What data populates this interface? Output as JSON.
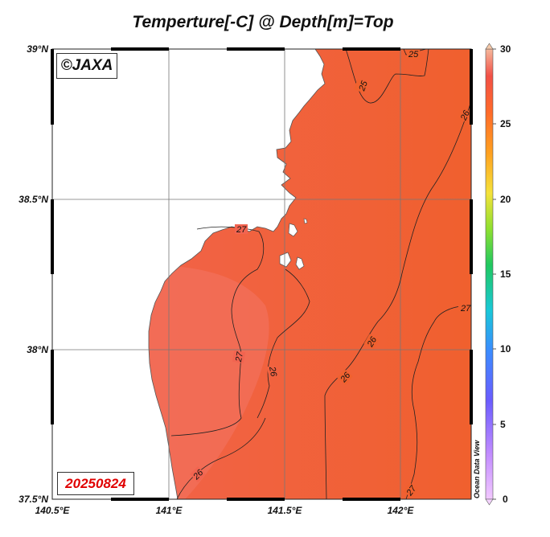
{
  "title": "Temperture[-C] @ Depth[m]=Top",
  "copyright": "©JAXA",
  "date": "20250824",
  "watermark": "Ocean Data View",
  "map": {
    "lat_labels": [
      "39°N",
      "38.5°N",
      "38°N",
      "37.5°N"
    ],
    "lon_labels": [
      "140.5°E",
      "141°E",
      "141.5°E",
      "142°E"
    ],
    "extent": {
      "lon": [
        140.5,
        142.3
      ],
      "lat": [
        37.5,
        39.0
      ]
    }
  },
  "colorbar": {
    "min": 0,
    "max": 30,
    "tick_labels": [
      "30",
      "25",
      "20",
      "15",
      "10",
      "5",
      "0"
    ],
    "colors": [
      "#f2c8ff",
      "#c28cff",
      "#6a5cff",
      "#3b8cff",
      "#19c8d8",
      "#20c860",
      "#8ee030",
      "#f5e23a",
      "#ffa020",
      "#ff6a2a",
      "#f25046",
      "#f5b89c"
    ]
  },
  "contours": [
    {
      "label": "25",
      "value": 25
    },
    {
      "label": "25",
      "value": 25
    },
    {
      "label": "26",
      "value": 26
    },
    {
      "label": "27",
      "value": 27
    },
    {
      "label": "27",
      "value": 27
    },
    {
      "label": "26",
      "value": 26
    },
    {
      "label": "26",
      "value": 26
    },
    {
      "label": "26",
      "value": 26
    },
    {
      "label": "27",
      "value": 27
    },
    {
      "label": "26",
      "value": 26
    },
    {
      "label": "27",
      "value": 27
    }
  ],
  "colors": {
    "sea_warm": "#f06a3e",
    "sea_warmer": "#f26650",
    "land": "#ffffff"
  }
}
